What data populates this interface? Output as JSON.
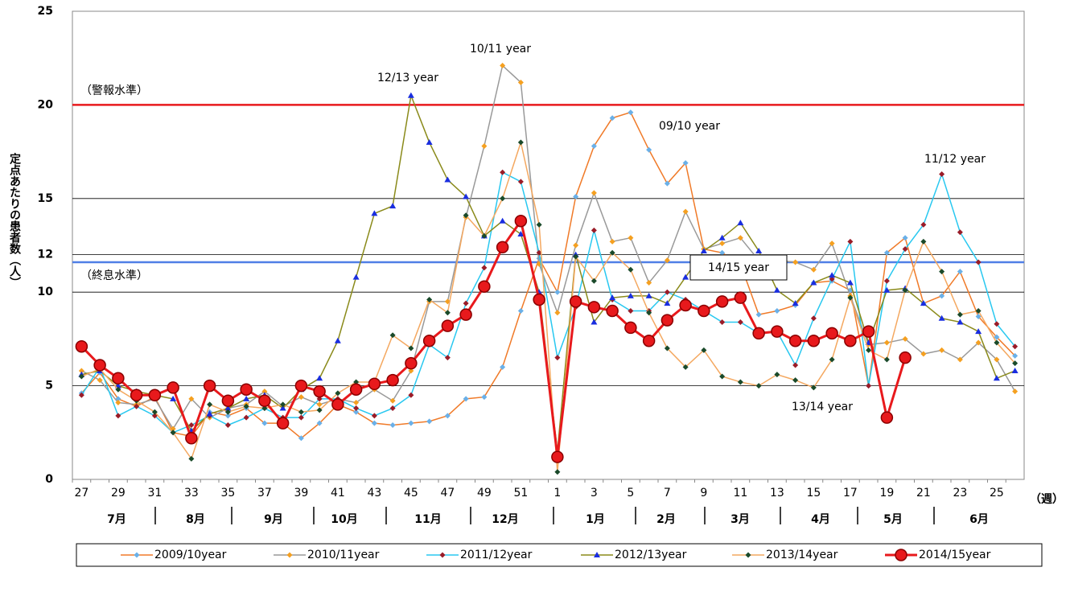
{
  "chart_data": {
    "type": "line",
    "y_label": "定点あたりの患者数（人）",
    "x_label": "（週）",
    "categories": [
      "27",
      null,
      "29",
      null,
      "31",
      null,
      "33",
      null,
      "35",
      null,
      "37",
      null,
      "39",
      null,
      "41",
      null,
      "43",
      null,
      "45",
      null,
      "47",
      null,
      "49",
      null,
      "51",
      null,
      "1",
      null,
      "3",
      null,
      "5",
      null,
      "7",
      null,
      "9",
      null,
      "11",
      null,
      "13",
      null,
      "15",
      null,
      "17",
      null,
      "19",
      null,
      "21",
      null,
      "23",
      null,
      "25",
      null
    ],
    "months": [
      "7月",
      "8月",
      "9月",
      "10月",
      "11月",
      "12月",
      "1月",
      "2月",
      "3月",
      "4月",
      "5月",
      "6月"
    ],
    "ylim": [
      0,
      25
    ],
    "yticks": [
      0,
      5,
      10,
      12,
      15,
      20,
      25
    ],
    "grid": true,
    "reference_lines": [
      {
        "label": "（警報水準）",
        "value": 20,
        "color": "#e8191c"
      },
      {
        "label": "（終息水準）",
        "value": 11.6,
        "color": "#4f7fe6"
      }
    ],
    "annotations": [
      "12/13 year",
      "10/11 year",
      "09/10 year",
      "11/12 year",
      "14/15 year",
      "13/14 year"
    ],
    "series": [
      {
        "name": "2009/10year",
        "color": "#f07a28",
        "marker": "diamond",
        "marker_color": "#6ab0e8",
        "values": [
          4.6,
          5.7,
          4.3,
          3.9,
          4.4,
          2.5,
          2.3,
          3.6,
          3.4,
          3.8,
          3.0,
          3.0,
          2.2,
          3.0,
          4.0,
          3.6,
          3.0,
          2.9,
          3.0,
          3.1,
          3.4,
          4.3,
          4.4,
          6.0,
          9.0,
          11.8,
          10.0,
          15.1,
          17.8,
          19.3,
          19.6,
          17.6,
          15.8,
          16.9,
          12.3,
          12.1,
          11.5,
          8.8,
          9.0,
          9.3,
          10.5,
          10.6,
          10.1,
          5.0,
          12.1,
          12.9,
          9.4,
          9.8,
          11.1,
          8.7,
          7.6,
          6.6
        ]
      },
      {
        "name": "2010/11year",
        "color": "#999999",
        "marker": "diamond",
        "marker_color": "#f5a020",
        "values": [
          5.8,
          5.3,
          4.1,
          4.0,
          4.3,
          2.7,
          4.3,
          3.3,
          3.8,
          4.0,
          4.7,
          3.9,
          4.4,
          4.0,
          4.3,
          4.1,
          4.8,
          4.2,
          5.8,
          9.5,
          9.5,
          14.0,
          17.8,
          22.1,
          21.2,
          11.5,
          8.9,
          12.5,
          15.3,
          12.7,
          12.9,
          10.5,
          11.7,
          14.3,
          12.3,
          12.6,
          12.9,
          11.7,
          11.7,
          11.6,
          11.2,
          12.6,
          9.8,
          7.2,
          7.3,
          7.5,
          6.7,
          6.9,
          6.4,
          7.3,
          6.4,
          4.7
        ]
      },
      {
        "name": "2011/12year",
        "color": "#28c8f0",
        "marker": "diamond",
        "marker_color": "#9a1c28",
        "values": [
          4.5,
          6.0,
          3.4,
          3.9,
          3.4,
          2.5,
          2.9,
          3.4,
          2.9,
          3.3,
          3.8,
          3.3,
          3.3,
          4.3,
          4.3,
          3.8,
          3.4,
          3.8,
          4.5,
          7.2,
          6.5,
          9.4,
          11.3,
          16.4,
          15.9,
          12.1,
          6.5,
          9.2,
          13.3,
          9.6,
          9.0,
          9.0,
          10.0,
          9.6,
          9.0,
          8.4,
          8.4,
          7.8,
          7.9,
          6.1,
          8.6,
          10.7,
          12.7,
          5.0,
          10.6,
          12.3,
          13.6,
          16.3,
          13.2,
          11.6,
          8.3,
          7.1
        ]
      },
      {
        "name": "2012/13year",
        "color": "#8a8a1a",
        "marker": "triangle",
        "marker_color": "#1a2ee0",
        "values": [
          5.6,
          5.8,
          5.0,
          4.7,
          4.5,
          4.3,
          2.6,
          3.5,
          3.8,
          4.3,
          4.5,
          3.8,
          4.8,
          5.4,
          7.4,
          10.8,
          14.2,
          14.6,
          20.5,
          18.0,
          16.0,
          15.1,
          13.0,
          13.8,
          13.1,
          10.0,
          1.5,
          12.0,
          8.4,
          9.7,
          9.8,
          9.8,
          9.4,
          10.8,
          12.2,
          12.9,
          13.7,
          12.2,
          10.1,
          9.4,
          10.5,
          10.9,
          10.5,
          7.3,
          10.1,
          10.2,
          9.4,
          8.6,
          8.4,
          7.9,
          5.4,
          5.8
        ]
      },
      {
        "name": "2013/14year",
        "color": "#f4a860",
        "marker": "diamond",
        "marker_color": "#1a4a2a",
        "values": [
          5.5,
          5.9,
          4.8,
          4.2,
          3.6,
          2.5,
          1.1,
          4.0,
          3.6,
          3.9,
          3.8,
          4.0,
          3.6,
          3.7,
          4.6,
          5.2,
          5.2,
          7.7,
          7.0,
          9.6,
          8.9,
          14.1,
          13.0,
          15.0,
          18.0,
          13.6,
          0.4,
          11.9,
          10.6,
          12.1,
          11.2,
          8.9,
          7.0,
          6.0,
          6.9,
          5.5,
          5.2,
          5.0,
          5.6,
          5.3,
          4.9,
          6.4,
          9.7,
          6.9,
          6.4,
          10.1,
          12.7,
          11.1,
          8.8,
          9.0,
          7.3,
          6.2
        ]
      },
      {
        "name": "2014/15year",
        "color": "#e8191c",
        "marker": "circle",
        "marker_color": "#e8191c",
        "values": [
          7.1,
          6.1,
          5.4,
          4.5,
          4.5,
          4.9,
          2.2,
          5.0,
          4.2,
          4.8,
          4.2,
          3.0,
          5.0,
          4.7,
          4.0,
          4.8,
          5.1,
          5.3,
          6.2,
          7.4,
          8.2,
          8.8,
          10.3,
          12.4,
          13.8,
          9.6,
          1.2,
          9.5,
          9.2,
          9.0,
          8.1,
          7.4,
          8.5,
          9.3,
          9.0,
          9.5,
          9.7,
          7.8,
          7.9,
          7.4,
          7.4,
          7.8,
          7.4,
          7.9,
          3.3,
          6.5,
          null,
          null,
          null,
          null,
          null,
          null
        ]
      }
    ]
  }
}
